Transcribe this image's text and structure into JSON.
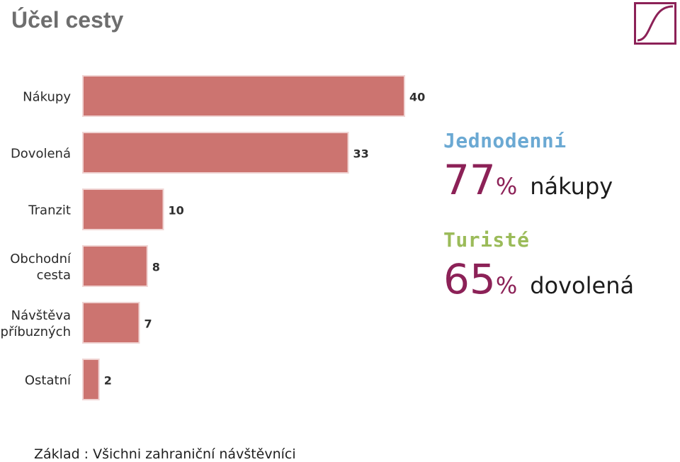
{
  "header": {
    "title": "Účel cesty"
  },
  "colors": {
    "bar": "#cc7470",
    "bar_edge": "#f0d4d3",
    "accent": "#8c2157",
    "heading_blue": "#6ba9d3",
    "heading_green": "#9bbb59",
    "title_gray": "#6e6e6e"
  },
  "chart_data": {
    "type": "bar",
    "orientation": "horizontal",
    "categories": [
      [
        "Nákupy"
      ],
      [
        "Dovolená"
      ],
      [
        "Tranzit"
      ],
      [
        "Obchodní",
        "cesta"
      ],
      [
        "Návštěva",
        "příbuzných"
      ],
      [
        "Ostatní"
      ]
    ],
    "values": [
      40,
      33,
      10,
      8,
      7,
      2
    ],
    "value_labels": [
      "40",
      "33",
      "10",
      "8",
      "7",
      "2"
    ],
    "xlim": [
      0,
      40
    ],
    "grid": false,
    "legend": "none"
  },
  "stats": [
    {
      "heading": "Jednodenní",
      "heading_color": "#6ba9d3",
      "number": "77",
      "percent": "%",
      "description": "nákupy"
    },
    {
      "heading": "Turisté",
      "heading_color": "#9bbb59",
      "number": "65",
      "percent": "%",
      "description": "dovolená"
    }
  ],
  "footnote": "Základ : Všichni zahraniční návštěvníci",
  "logo": {
    "icon": "s-curve-logo-icon",
    "color": "#8c2157"
  }
}
